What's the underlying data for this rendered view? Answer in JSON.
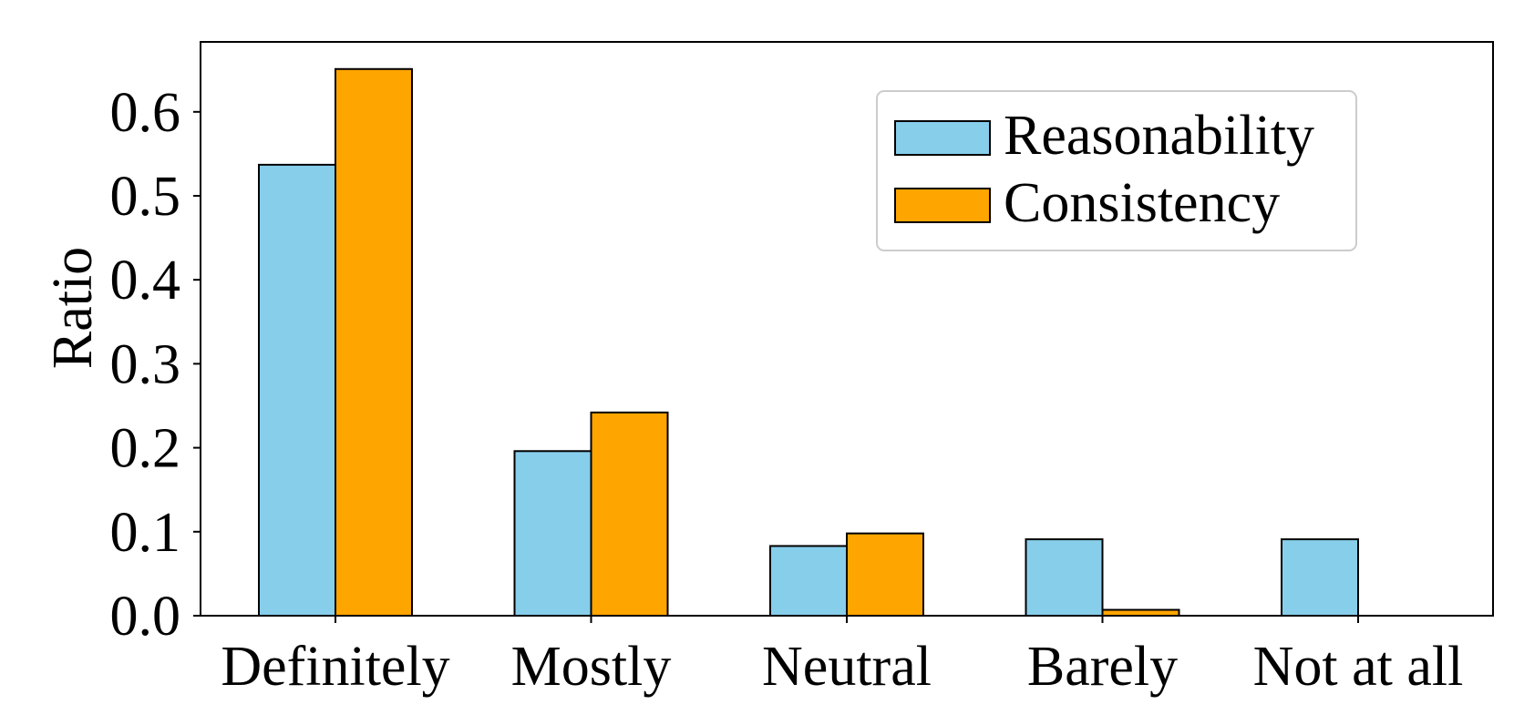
{
  "chart_data": {
    "type": "bar",
    "categories": [
      "Definitely",
      "Mostly",
      "Neutral",
      "Barely",
      "Not at all"
    ],
    "series": [
      {
        "name": "Reasonability",
        "values": [
          0.537,
          0.196,
          0.083,
          0.091,
          0.091
        ]
      },
      {
        "name": "Consistency",
        "values": [
          0.651,
          0.242,
          0.098,
          0.007,
          0.0
        ]
      }
    ],
    "xlabel": "",
    "ylabel": "Ratio",
    "ylim": [
      0,
      0.68
    ],
    "yticks": [
      "0.0",
      "0.1",
      "0.2",
      "0.3",
      "0.4",
      "0.5",
      "0.6"
    ],
    "grid": false,
    "legend_position": "top-right",
    "colors": {
      "Reasonability": "#87ceeb",
      "Consistency": "#ffa500",
      "edge": "#000000"
    }
  }
}
